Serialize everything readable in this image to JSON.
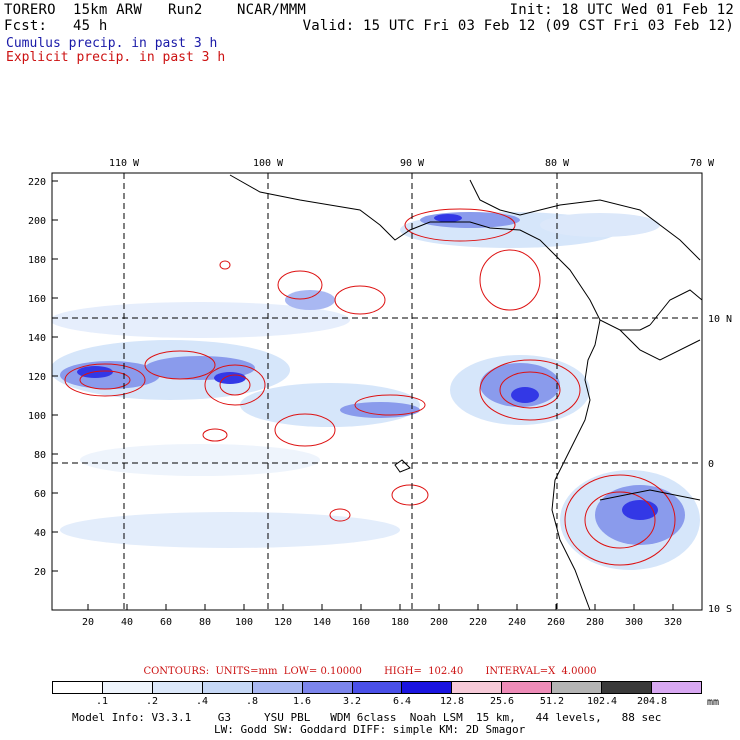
{
  "header": {
    "left_line1": "TORERO  15km ARW   Run2    NCAR/MMM",
    "left_line2": "Fcst:   45 h",
    "right_line1": "Init: 18 UTC Wed 01 Feb 12",
    "right_line2": "Valid: 15 UTC Fri 03 Feb 12 (09 CST Fri 03 Feb 12)"
  },
  "legend": {
    "cumulus": "Cumulus precip. in past 3 h",
    "explicit": "Explicit precip. in past 3 h"
  },
  "map": {
    "top_lon_labels": [
      "110 W",
      "100 W",
      "90 W",
      "80 W",
      "70 W"
    ],
    "right_lat_labels": [
      "10 N",
      "0",
      "10 S"
    ],
    "y_ticks": [
      "220",
      "200",
      "180",
      "160",
      "140",
      "120",
      "100",
      "80",
      "60",
      "40",
      "20"
    ],
    "x_ticks": [
      "20",
      "40",
      "60",
      "80",
      "100",
      "120",
      "140",
      "160",
      "180",
      "200",
      "220",
      "240",
      "260",
      "280",
      "300",
      "320"
    ],
    "colors": {
      "coast": "#000000",
      "grid": "#000000",
      "explicit_contour": "#dd1111",
      "cumulus_light": "#d6e6fa",
      "cumulus_mid": "#8a9bec",
      "cumulus_dark": "#3338e6"
    }
  },
  "contours_line": "CONTOURS:  UNITS=mm  LOW= 0.10000       HIGH=  102.40       INTERVAL=X  4.0000",
  "colorbar": {
    "labels": [
      ".1",
      ".2",
      ".4",
      ".8",
      "1.6",
      "3.2",
      "6.4",
      "12.8",
      "25.6",
      "51.2",
      "102.4",
      "204.8"
    ],
    "unit": "mm",
    "colors": [
      "#ffffff",
      "#eef4fc",
      "#dce8fa",
      "#c6d8f6",
      "#a9b8f2",
      "#7c85ec",
      "#4a50e8",
      "#1a14e0",
      "#f6cad8",
      "#ee8cb8",
      "#b4b4b4",
      "#3a3a3a",
      "#d8a8f2"
    ]
  },
  "model_info": {
    "line1": "Model Info: V3.3.1    G3     YSU PBL   WDM 6class  Noah LSM  15 km,   44 levels,   88 sec",
    "line2": "LW: Godd SW: Goddard DIFF: simple KM: 2D Smagor"
  }
}
